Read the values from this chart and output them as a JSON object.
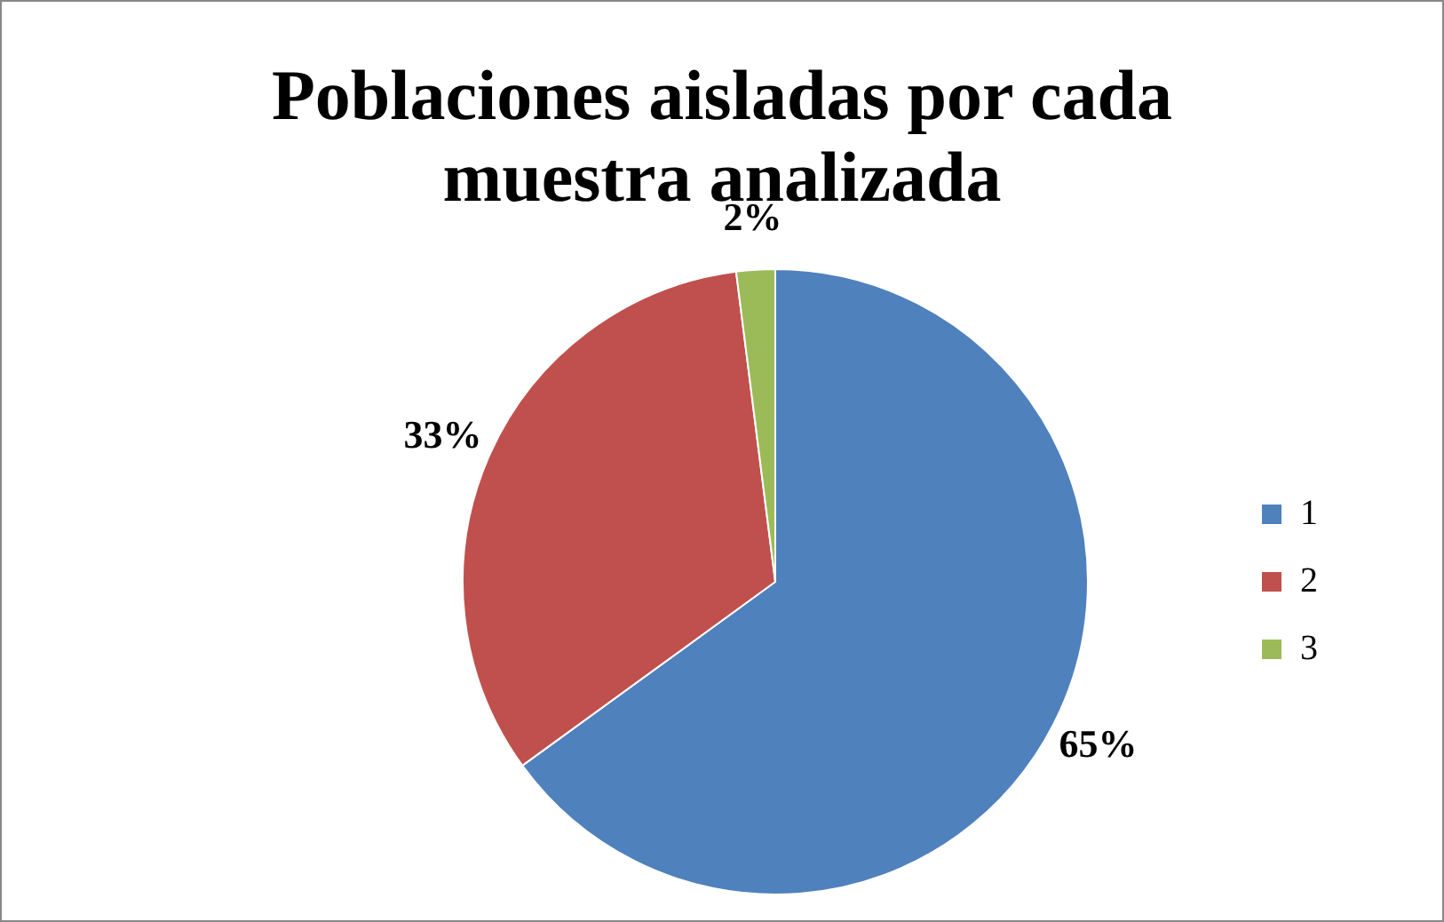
{
  "chart_data": {
    "type": "pie",
    "title": "Poblaciones aisladas por cada muestra analizada",
    "categories": [
      "1",
      "2",
      "3"
    ],
    "values": [
      65,
      33,
      2
    ],
    "value_labels": [
      "65%",
      "33%",
      "2%"
    ],
    "colors": [
      "#4f81bd",
      "#c0504d",
      "#9bbb59"
    ],
    "legend": "right"
  }
}
